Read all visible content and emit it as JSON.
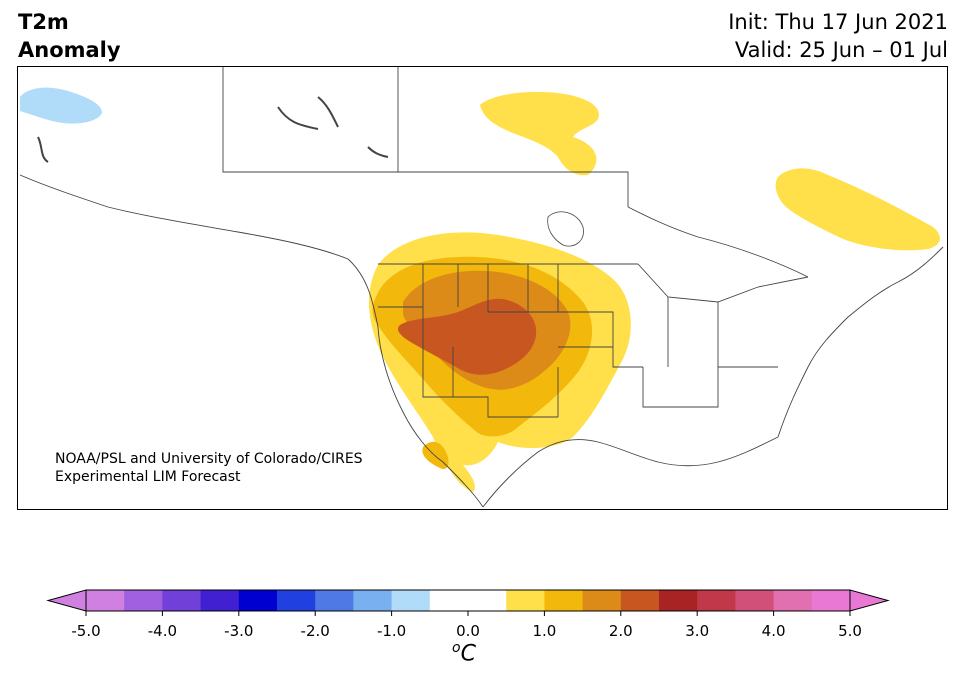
{
  "title": {
    "line1": "T2m",
    "line2": "Anomaly"
  },
  "header_right": {
    "init": "Init: Thu 17 Jun 2021",
    "valid": "Valid: 25 Jun – 01 Jul"
  },
  "credit": {
    "line1": "NOAA/PSL and University of Colorado/CIRES",
    "line2": "Experimental LIM Forecast"
  },
  "colorbar": {
    "ticks": [
      "-5.0",
      "-4.0",
      "-3.0",
      "-2.0",
      "-1.0",
      "0.0",
      "1.0",
      "2.0",
      "3.0",
      "4.0",
      "5.0"
    ],
    "units_main": "C",
    "units_sup": "o",
    "colors": [
      "#d080e0",
      "#a060e0",
      "#7040d8",
      "#4020d0",
      "#0000d0",
      "#2040e0",
      "#4f7ae6",
      "#78b0f0",
      "#b0dcfa",
      "#ffffff",
      "#ffffff",
      "#ffe04a",
      "#f2b80c",
      "#dc8a18",
      "#c85620",
      "#a82424",
      "#c0384a",
      "#d0507a",
      "#e070b0",
      "#e878d4"
    ]
  },
  "regions": {
    "labels": [
      "warm-anomaly-west",
      "cool-anomaly-alaska",
      "warm-anomaly-quebec",
      "warm-anomaly-nunavut"
    ]
  }
}
